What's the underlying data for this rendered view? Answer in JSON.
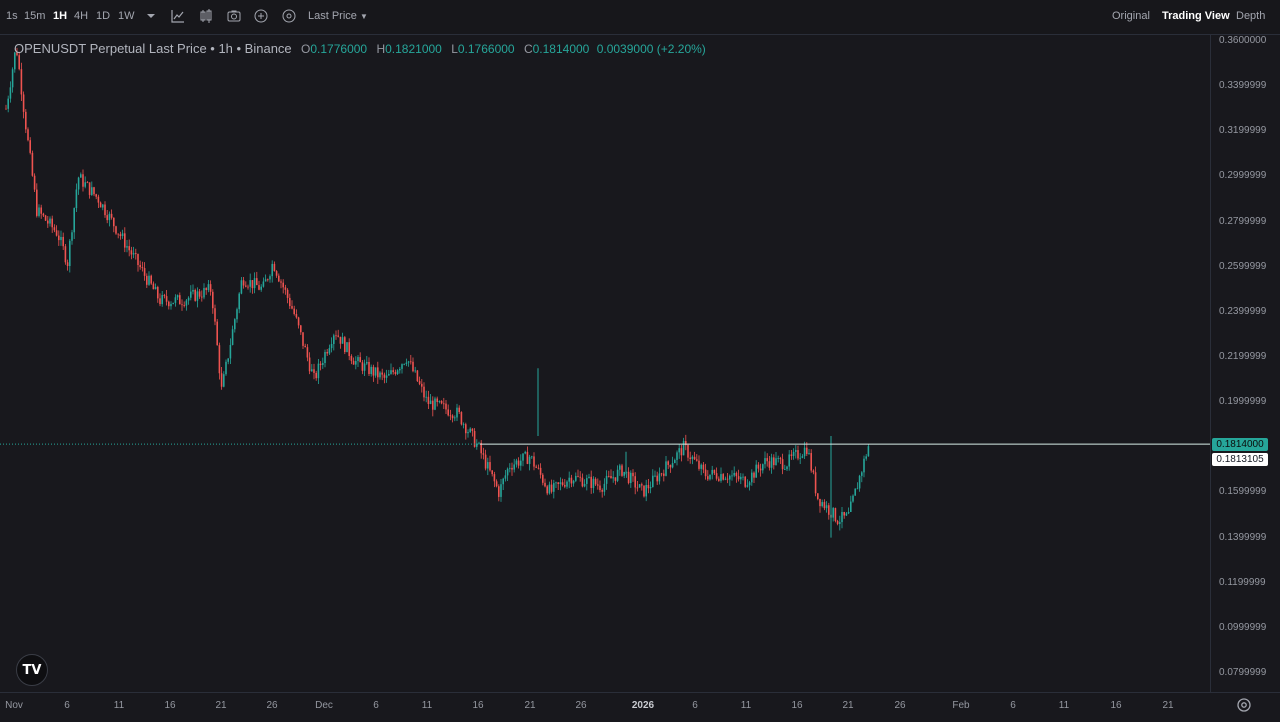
{
  "toolbar": {
    "intervals": [
      "1s",
      "15m",
      "1H",
      "4H",
      "1D",
      "1W"
    ],
    "active_interval": "1H",
    "price_type_label": "Last Price",
    "views": [
      "Original",
      "Trading View",
      "Depth"
    ],
    "active_view": "Trading View",
    "icons": [
      "chevron-down-icon",
      "indicators-icon",
      "chart-style-icon",
      "camera-icon",
      "plus-circle-icon",
      "settings-circle-icon"
    ]
  },
  "legend": {
    "symbol_title": "OPENUSDT Perpetual Last Price • 1h • Binance",
    "open_label": "O",
    "open": "0.1776000",
    "high_label": "H",
    "high": "0.1821000",
    "low_label": "L",
    "low": "0.1766000",
    "close_label": "C",
    "close": "0.1814000",
    "change": "0.0039000 (+2.20%)"
  },
  "price_axis": {
    "ticks": [
      "0.3600000",
      "0.3399999",
      "0.3199999",
      "0.2999999",
      "0.2799999",
      "0.2599999",
      "0.2399999",
      "0.2199999",
      "0.1999999",
      "0.1599999",
      "0.1399999",
      "0.1199999",
      "0.0999999",
      "0.0799999"
    ],
    "last_price_label": "0.1814000",
    "mark_price_label": "0.1813105"
  },
  "time_axis": {
    "ticks": [
      "Nov",
      "6",
      "11",
      "16",
      "21",
      "26",
      "Dec",
      "6",
      "11",
      "16",
      "21",
      "26",
      "2026",
      "6",
      "11",
      "16",
      "21",
      "26",
      "Feb",
      "6",
      "11",
      "16",
      "21"
    ]
  },
  "logo_text": "TV",
  "colors": {
    "up": "#26a69a",
    "down": "#ef5350",
    "background": "#18181d",
    "last_price_line": "#26a69a"
  },
  "chart_data": {
    "type": "candlestick",
    "title": "OPENUSDT Perpetual Last Price • 1h • Binance",
    "interval": "1h",
    "x_range": [
      "Nov",
      "26 Jan"
    ],
    "ylim": [
      0.0799999,
      0.36
    ],
    "last_price": 0.1814,
    "mark_price": 0.1813105,
    "approx_close_path": [
      {
        "date": "Nov 1",
        "close": 0.33
      },
      {
        "date": "Nov 2",
        "close": 0.358
      },
      {
        "date": "Nov 3",
        "close": 0.32
      },
      {
        "date": "Nov 4",
        "close": 0.285
      },
      {
        "date": "Nov 6",
        "close": 0.275
      },
      {
        "date": "Nov 7",
        "close": 0.262
      },
      {
        "date": "Nov 8",
        "close": 0.3
      },
      {
        "date": "Nov 10",
        "close": 0.29
      },
      {
        "date": "Nov 12",
        "close": 0.275
      },
      {
        "date": "Nov 14",
        "close": 0.26
      },
      {
        "date": "Nov 16",
        "close": 0.245
      },
      {
        "date": "Nov 18",
        "close": 0.245
      },
      {
        "date": "Nov 21",
        "close": 0.25
      },
      {
        "date": "Nov 22",
        "close": 0.205
      },
      {
        "date": "Nov 24",
        "close": 0.255
      },
      {
        "date": "Nov 26",
        "close": 0.25
      },
      {
        "date": "Nov 27",
        "close": 0.262
      },
      {
        "date": "Nov 29",
        "close": 0.24
      },
      {
        "date": "Dec 1",
        "close": 0.21
      },
      {
        "date": "Dec 3",
        "close": 0.232
      },
      {
        "date": "Dec 5",
        "close": 0.218
      },
      {
        "date": "Dec 8",
        "close": 0.21
      },
      {
        "date": "Dec 10",
        "close": 0.22
      },
      {
        "date": "Dec 12",
        "close": 0.2
      },
      {
        "date": "Dec 15",
        "close": 0.195
      },
      {
        "date": "Dec 17",
        "close": 0.18
      },
      {
        "date": "Dec 19",
        "close": 0.16
      },
      {
        "date": "Dec 20",
        "close": 0.172
      },
      {
        "date": "Dec 22",
        "close": 0.176
      },
      {
        "date": "Dec 24",
        "close": 0.16
      },
      {
        "date": "Dec 26",
        "close": 0.167
      },
      {
        "date": "Dec 29",
        "close": 0.163
      },
      {
        "date": "Dec 31",
        "close": 0.17
      },
      {
        "date": "Jan 2",
        "close": 0.16
      },
      {
        "date": "Jan 4",
        "close": 0.17
      },
      {
        "date": "Jan 6",
        "close": 0.18
      },
      {
        "date": "Jan 8",
        "close": 0.168
      },
      {
        "date": "Jan 10",
        "close": 0.168
      },
      {
        "date": "Jan 12",
        "close": 0.165
      },
      {
        "date": "Jan 14",
        "close": 0.174
      },
      {
        "date": "Jan 16",
        "close": 0.173
      },
      {
        "date": "Jan 18",
        "close": 0.18
      },
      {
        "date": "Jan 19",
        "close": 0.158
      },
      {
        "date": "Jan 21",
        "close": 0.148
      },
      {
        "date": "Jan 22",
        "close": 0.149
      },
      {
        "date": "Jan 24",
        "close": 0.181
      }
    ],
    "grid": false
  }
}
